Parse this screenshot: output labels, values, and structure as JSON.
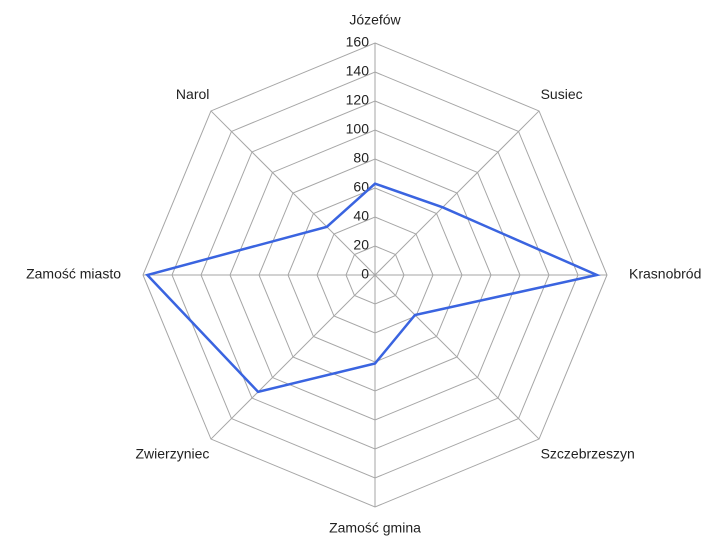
{
  "chart_data": {
    "type": "radar",
    "categories": [
      "Józefów",
      "Susiec",
      "Krasnobród",
      "Szczebrzeszyn",
      "Zamość gmina",
      "Zwierzyniec",
      "Zamość miasto",
      "Narol"
    ],
    "series": [
      {
        "color": "#3a64e0",
        "values": [
          63,
          66,
          153,
          39,
          61,
          114,
          157,
          47
        ]
      }
    ],
    "ylim": [
      0,
      160
    ],
    "yticks": [
      0,
      20,
      40,
      60,
      80,
      100,
      120,
      140,
      160
    ],
    "grid": true
  }
}
